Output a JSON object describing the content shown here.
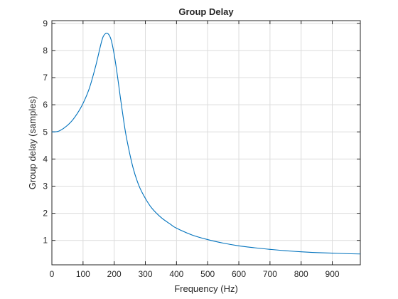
{
  "chart_data": {
    "type": "line",
    "title": "Group Delay",
    "xlabel": "Frequency (Hz)",
    "ylabel": "Group delay (samples)",
    "xlim": [
      0,
      990
    ],
    "ylim": [
      0.1,
      9.1
    ],
    "xticks": [
      0,
      100,
      200,
      300,
      400,
      500,
      600,
      700,
      800,
      900
    ],
    "yticks": [
      1,
      2,
      3,
      4,
      5,
      6,
      7,
      8,
      9
    ],
    "grid": true,
    "legend": "none",
    "series": [
      {
        "color": "#0072BD",
        "x": [
          0,
          20,
          40,
          60,
          80,
          100,
          120,
          140,
          160,
          170,
          180,
          190,
          200,
          210,
          220,
          230,
          240,
          260,
          280,
          300,
          320,
          350,
          380,
          400,
          450,
          500,
          550,
          600,
          650,
          700,
          750,
          800,
          850,
          900,
          950,
          990
        ],
        "y": [
          5.0,
          5.02,
          5.15,
          5.35,
          5.65,
          6.05,
          6.6,
          7.4,
          8.35,
          8.6,
          8.62,
          8.4,
          7.85,
          7.1,
          6.25,
          5.45,
          4.75,
          3.7,
          3.0,
          2.55,
          2.2,
          1.85,
          1.6,
          1.45,
          1.2,
          1.03,
          0.9,
          0.8,
          0.73,
          0.67,
          0.62,
          0.58,
          0.55,
          0.53,
          0.51,
          0.5
        ]
      }
    ]
  }
}
